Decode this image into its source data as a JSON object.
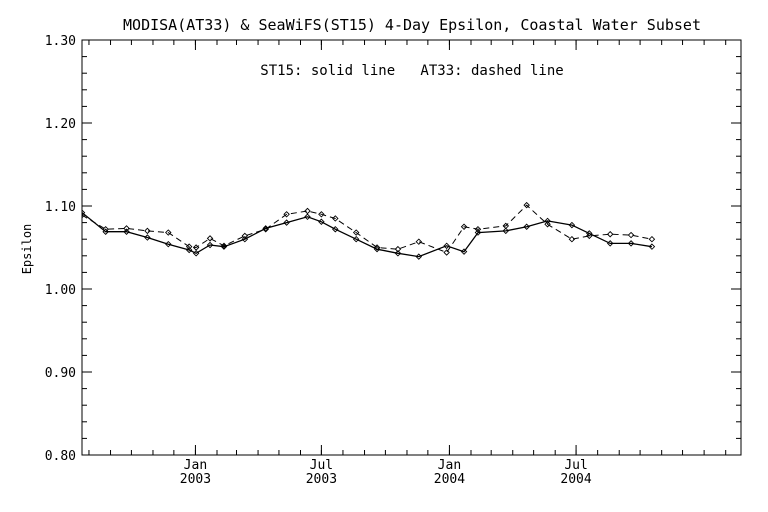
{
  "chart_data": {
    "type": "line",
    "title": "MODISA(AT33) & SeaWiFS(ST15) 4-Day Epsilon, Coastal Water Subset",
    "annotation": "ST15: solid line   AT33: dashed line",
    "xlabel": "",
    "ylabel": "Epsilon",
    "xlim": [
      "2002-07-22",
      "2005-02-23"
    ],
    "ylim": [
      0.8,
      1.3
    ],
    "yticks": [
      0.8,
      0.9,
      1.0,
      1.1,
      1.2,
      1.3
    ],
    "ytick_labels": [
      "0.80",
      "0.90",
      "1.00",
      "1.10",
      "1.20",
      "1.30"
    ],
    "xticks": [
      {
        "date": "2003-01-01",
        "month": "Jan",
        "year": "2003"
      },
      {
        "date": "2003-07-01",
        "month": "Jul",
        "year": "2003"
      },
      {
        "date": "2004-01-01",
        "month": "Jan",
        "year": "2004"
      },
      {
        "date": "2004-07-01",
        "month": "Jul",
        "year": "2004"
      }
    ],
    "grid": false,
    "legend": "none",
    "x": [
      "2002-07-22",
      "2002-08-25",
      "2002-09-24",
      "2002-10-24",
      "2002-11-23",
      "2002-12-23",
      "2003-01-02",
      "2003-01-22",
      "2003-02-11",
      "2003-03-13",
      "2003-04-12",
      "2003-05-12",
      "2003-06-11",
      "2003-07-01",
      "2003-07-21",
      "2003-08-20",
      "2003-09-19",
      "2003-10-19",
      "2003-11-18",
      "2003-12-28",
      "2004-01-22",
      "2004-02-11",
      "2004-03-22",
      "2004-04-21",
      "2004-05-21",
      "2004-06-25",
      "2004-07-20",
      "2004-08-19",
      "2004-09-18",
      "2004-10-18",
      "2004-11-17",
      "2004-12-22",
      "2005-01-11",
      "2005-02-23"
    ],
    "series": [
      {
        "name": "ST15",
        "style": "solid",
        "values": [
          1.092,
          1.069,
          1.069,
          1.062,
          1.054,
          1.047,
          1.043,
          1.053,
          1.051,
          1.06,
          1.073,
          1.08,
          1.087,
          1.081,
          1.072,
          1.06,
          1.048,
          1.043,
          1.039,
          1.052,
          1.045,
          1.068,
          1.07,
          1.075,
          1.082,
          1.077,
          1.067,
          1.055,
          1.055,
          1.051,
          null,
          null,
          null,
          null
        ]
      },
      {
        "name": "AT33",
        "style": "dashed",
        "values": [
          1.089,
          1.072,
          1.073,
          1.07,
          1.068,
          1.051,
          1.05,
          1.061,
          1.052,
          1.064,
          1.072,
          1.09,
          1.094,
          1.09,
          1.085,
          1.068,
          1.05,
          1.048,
          1.057,
          1.044,
          1.075,
          1.072,
          1.076,
          1.101,
          1.078,
          1.06,
          1.064,
          1.066,
          1.065,
          1.06,
          null,
          null,
          null,
          null
        ]
      }
    ]
  }
}
